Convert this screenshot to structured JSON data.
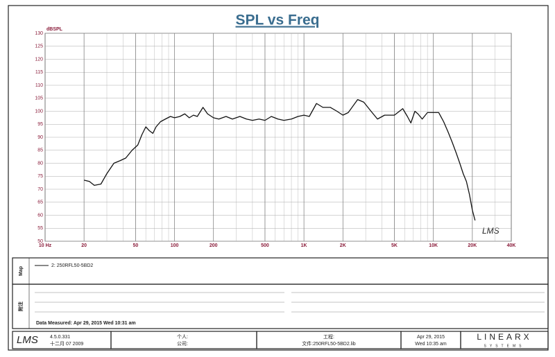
{
  "chart_data": {
    "type": "line",
    "title": "SPL vs Freq",
    "y_unit": "dBSPL",
    "log_x": true,
    "grid": true,
    "xlim": [
      10,
      40000
    ],
    "xticks": [
      {
        "value": 10,
        "label": "10 Hz"
      },
      20,
      50,
      100,
      200,
      500,
      {
        "value": 1000,
        "label": "1K"
      },
      {
        "value": 2000,
        "label": "2K"
      },
      {
        "value": 5000,
        "label": "5K"
      },
      {
        "value": 10000,
        "label": "10K"
      },
      {
        "value": 20000,
        "label": "20K"
      },
      {
        "value": 40000,
        "label": "40K"
      }
    ],
    "ylim": [
      50,
      130
    ],
    "yticks": [
      50,
      55,
      60,
      65,
      70,
      75,
      80,
      85,
      90,
      95,
      100,
      105,
      110,
      115,
      120,
      125,
      130
    ],
    "x": [
      20,
      22,
      24,
      27,
      30,
      34,
      38,
      42,
      47,
      52,
      56,
      60,
      64,
      68,
      72,
      78,
      85,
      93,
      100,
      110,
      120,
      130,
      140,
      150,
      166,
      180,
      200,
      220,
      250,
      280,
      320,
      360,
      400,
      450,
      500,
      560,
      630,
      700,
      800,
      900,
      1000,
      1100,
      1250,
      1400,
      1600,
      1800,
      2000,
      2200,
      2600,
      2900,
      3300,
      3700,
      4200,
      5000,
      5800,
      6300,
      6700,
      7200,
      7600,
      8200,
      9000,
      10000,
      11000,
      12000,
      13000,
      14000,
      15000,
      16000,
      17000,
      18000,
      19000,
      20000,
      21000
    ],
    "series": [
      {
        "name": "2: 250RFL50-5BD2",
        "color": "#111111",
        "values": [
          73.5,
          73,
          71.5,
          72,
          76,
          80,
          81,
          82,
          85,
          87,
          91,
          94,
          92.5,
          91.5,
          94,
          96,
          97,
          98,
          97.5,
          98,
          99,
          97.5,
          98.5,
          98,
          101.5,
          99,
          97.5,
          97,
          98,
          97,
          98,
          97,
          96.5,
          97,
          96.5,
          98,
          97,
          96.5,
          97,
          98,
          98.5,
          98,
          103,
          101.5,
          101.5,
          100,
          98.5,
          99.5,
          104.5,
          103.5,
          100,
          97,
          98.5,
          98.5,
          101,
          98,
          95.5,
          100,
          99,
          97,
          99.5,
          99.5,
          99.5,
          96,
          92,
          88,
          84,
          80,
          76,
          73,
          68,
          62,
          58
        ]
      }
    ],
    "watermark": "LMS"
  },
  "panel": {
    "legend_label": "Map",
    "notes_label": "附注",
    "measured": "Data Measured: Apr 29, 2015  Wed 10:31 am"
  },
  "footer": {
    "logo": "LMS",
    "version": "4.5.0.331",
    "build_date": "十二月 07 2009",
    "person": "个人:",
    "company": "公司:",
    "project": "工程:",
    "file": "文件:250RFL50-5BD2.lib",
    "date": "Apr 29, 2015",
    "time": "Wed 10:35 am",
    "brand": "LINEARX",
    "brand_sub": "SYSTEMS"
  }
}
